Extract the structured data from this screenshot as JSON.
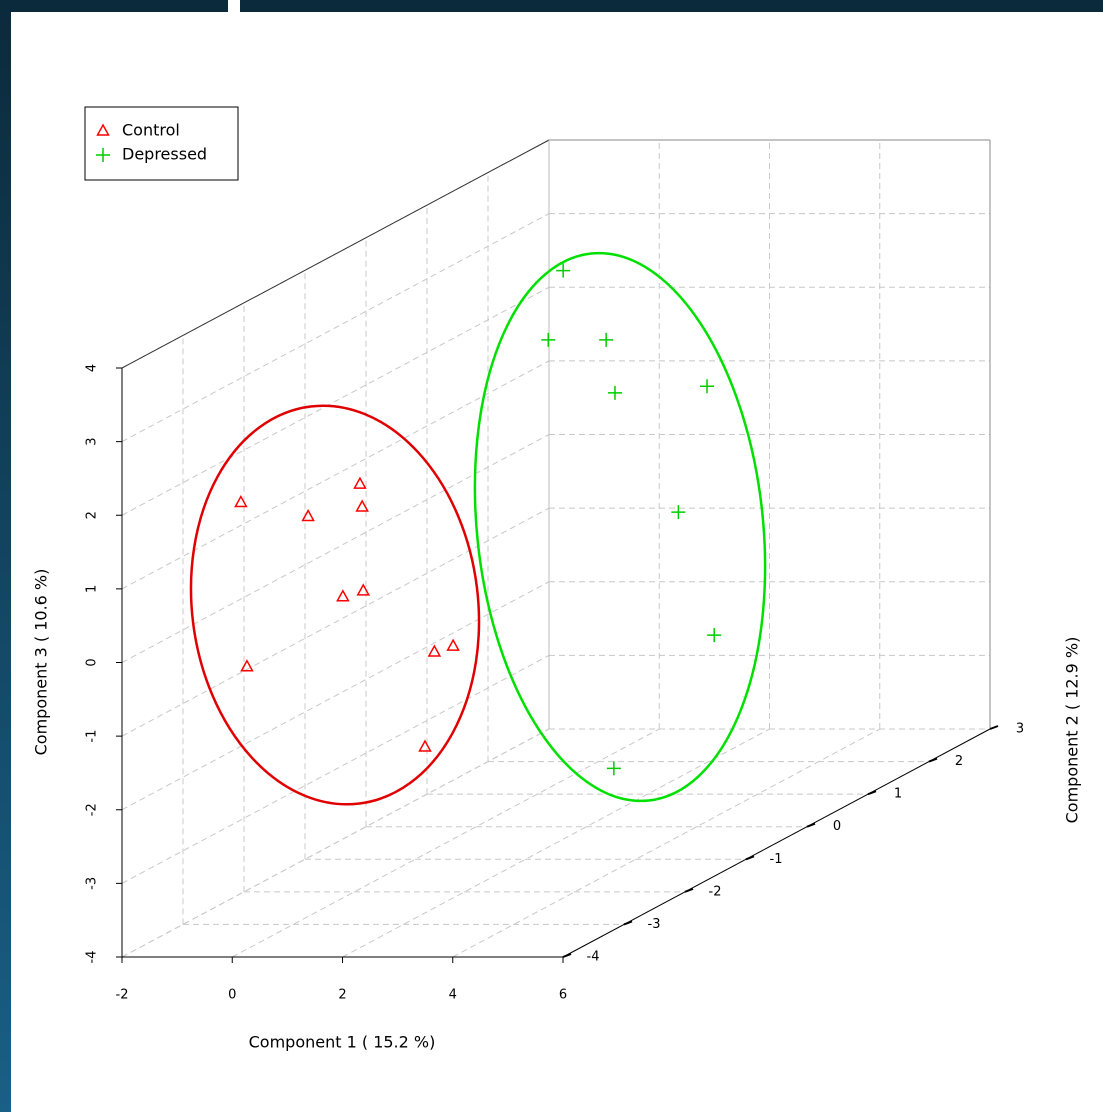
{
  "chart_data": {
    "type": "scatter3d",
    "x_label": "Component 1 ( 15.2 %)",
    "y_label": "Component 2 ( 12.9 %)",
    "z_label": "Component 3 ( 10.6 %)",
    "xlim": [
      -2,
      6
    ],
    "xticks": [
      -2,
      0,
      2,
      4,
      6
    ],
    "ylim": [
      -4,
      3
    ],
    "yticks": [
      -4,
      -3,
      -2,
      -1,
      0,
      1,
      2,
      3
    ],
    "zlim": [
      -4,
      4
    ],
    "zticks": [
      -4,
      -3,
      -2,
      -1,
      0,
      1,
      2,
      3,
      4
    ],
    "grid": true,
    "legend": "top-left",
    "series": [
      {
        "name": "Control",
        "color": "#ff0000",
        "marker": "triangle",
        "x": [
          -0.95,
          0.27,
          1.21,
          1.25,
          0.9,
          1.27,
          -0.84,
          2.56,
          2.9,
          2.39
        ],
        "y": [
          -3,
          -3,
          -3,
          -3,
          -3,
          -3,
          -3,
          -3,
          -3,
          -3
        ],
        "z": [
          1.73,
          1.54,
          1.98,
          1.67,
          0.45,
          0.53,
          -0.5,
          -0.3,
          -0.22,
          -1.59
        ]
      },
      {
        "name": "Depressed",
        "color": "#00cc00",
        "marker": "plus",
        "x": [
          0.47,
          0.2,
          1.25,
          1.41,
          3.08,
          2.56,
          3.21,
          1.39
        ],
        "y": [
          1,
          1,
          1,
          1,
          1,
          1,
          1,
          1
        ],
        "z": [
          3.11,
          2.17,
          2.17,
          1.45,
          1.54,
          -0.17,
          -1.84,
          -3.65
        ]
      }
    ]
  }
}
